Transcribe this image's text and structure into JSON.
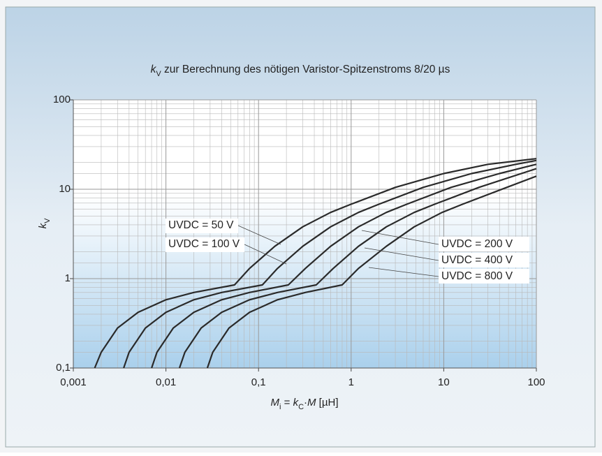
{
  "chart_data": {
    "type": "line",
    "title": {
      "symbol": "k",
      "subscript": "V",
      "text": " zur Berechnung des nötigen Varistor-Spitzenstroms 8/20 µs"
    },
    "y_label": {
      "symbol": "k",
      "subscript": "V"
    },
    "x_label": {
      "symbol": "M",
      "subscript": "i",
      "text": " = ",
      "symbol2": "k",
      "subscript2": "C",
      "text2": "·",
      "symbol3": "M",
      "text3": " [µH]"
    },
    "log_x": true,
    "log_y": true,
    "grid": true,
    "color": "#2a2a2a",
    "xlim": [
      0.001,
      100
    ],
    "ylim": [
      0.1,
      100
    ],
    "xticks": [
      {
        "value": 0.001,
        "label": "0,001"
      },
      {
        "value": 0.01,
        "label": "0,01"
      },
      {
        "value": 0.1,
        "label": "0,1"
      },
      1,
      10,
      100
    ],
    "yticks": [
      {
        "value": 0.1,
        "label": "0,1"
      },
      1,
      10,
      100
    ],
    "series": [
      {
        "name": "UVDC = 50 V",
        "x": [
          0.0017,
          0.002,
          0.003,
          0.005,
          0.01,
          0.02,
          0.055,
          0.08,
          0.15,
          0.3,
          0.6,
          1,
          3,
          10,
          30,
          100
        ],
        "values": [
          0.1,
          0.15,
          0.28,
          0.42,
          0.58,
          0.7,
          0.85,
          1.3,
          2.3,
          3.8,
          5.5,
          6.8,
          10.5,
          15,
          19,
          22
        ]
      },
      {
        "name": "UVDC = 100 V",
        "x": [
          0.0035,
          0.004,
          0.006,
          0.01,
          0.02,
          0.04,
          0.11,
          0.16,
          0.3,
          0.6,
          1.2,
          2,
          6,
          20,
          60,
          100
        ],
        "values": [
          0.1,
          0.15,
          0.28,
          0.42,
          0.58,
          0.7,
          0.85,
          1.3,
          2.3,
          3.8,
          5.5,
          6.8,
          10.5,
          15,
          19,
          21
        ]
      },
      {
        "name": "UVDC = 200 V",
        "x": [
          0.007,
          0.008,
          0.012,
          0.02,
          0.04,
          0.08,
          0.21,
          0.32,
          0.6,
          1.2,
          2.4,
          4,
          12,
          40,
          100
        ],
        "values": [
          0.1,
          0.15,
          0.28,
          0.42,
          0.58,
          0.7,
          0.85,
          1.3,
          2.3,
          3.8,
          5.5,
          6.8,
          10.5,
          15,
          19
        ]
      },
      {
        "name": "UVDC = 400 V",
        "x": [
          0.014,
          0.016,
          0.024,
          0.04,
          0.08,
          0.16,
          0.42,
          0.64,
          1.2,
          2.4,
          4.8,
          8,
          24,
          100
        ],
        "values": [
          0.1,
          0.15,
          0.28,
          0.42,
          0.58,
          0.7,
          0.85,
          1.3,
          2.3,
          3.8,
          5.5,
          6.8,
          10.5,
          17
        ]
      },
      {
        "name": "UVDC = 800 V",
        "x": [
          0.028,
          0.032,
          0.048,
          0.08,
          0.16,
          0.32,
          0.8,
          1.2,
          2.4,
          4.8,
          9.6,
          16,
          48,
          100
        ],
        "values": [
          0.1,
          0.15,
          0.28,
          0.42,
          0.58,
          0.7,
          0.85,
          1.3,
          2.3,
          3.8,
          5.5,
          6.8,
          10.5,
          14
        ]
      }
    ]
  }
}
